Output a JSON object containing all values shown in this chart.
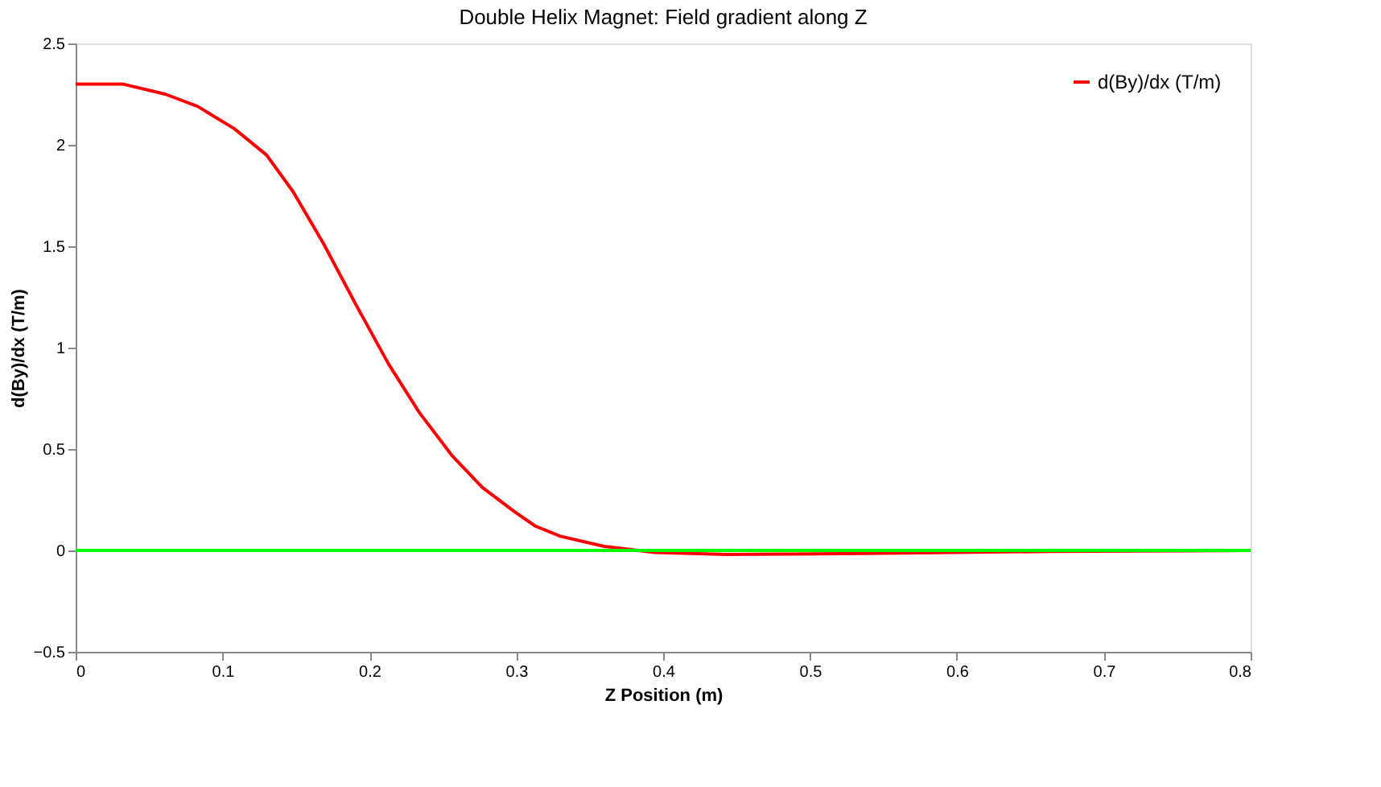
{
  "chart_data": {
    "type": "line",
    "title": "Double Helix Magnet: Field gradient along Z",
    "xlabel": "Z Position (m)",
    "ylabel": "d(By)/dx (T/m)",
    "xlim": [
      0,
      0.8
    ],
    "xticks": [
      0,
      0.1,
      0.2,
      0.3,
      0.4,
      0.5,
      0.6,
      0.7,
      0.8
    ],
    "ylim": [
      -0.5,
      2.5
    ],
    "yticks": [
      -0.5,
      0,
      0.5,
      1,
      1.5,
      2,
      2.5
    ],
    "grid": false,
    "legend": "top right",
    "marker": "none",
    "line_style": "solid",
    "series": [
      {
        "name": "d(By)/dx (T/m)",
        "color": "#ff0000",
        "x": [
          0,
          0.032,
          0.061,
          0.083,
          0.108,
          0.13,
          0.148,
          0.169,
          0.191,
          0.213,
          0.234,
          0.256,
          0.277,
          0.299,
          0.313,
          0.33,
          0.36,
          0.394,
          0.443,
          0.538,
          0.663,
          0.8
        ],
        "values": [
          2.3,
          2.3,
          2.25,
          2.19,
          2.08,
          1.95,
          1.77,
          1.51,
          1.21,
          0.92,
          0.68,
          0.47,
          0.31,
          0.19,
          0.12,
          0.07,
          0.02,
          -0.01,
          -0.02,
          -0.015,
          -0.005,
          0
        ]
      }
    ],
    "ref_lines": [
      {
        "axis": "y",
        "value": 0,
        "color": "#00ff00",
        "line_style": "solid"
      }
    ]
  }
}
